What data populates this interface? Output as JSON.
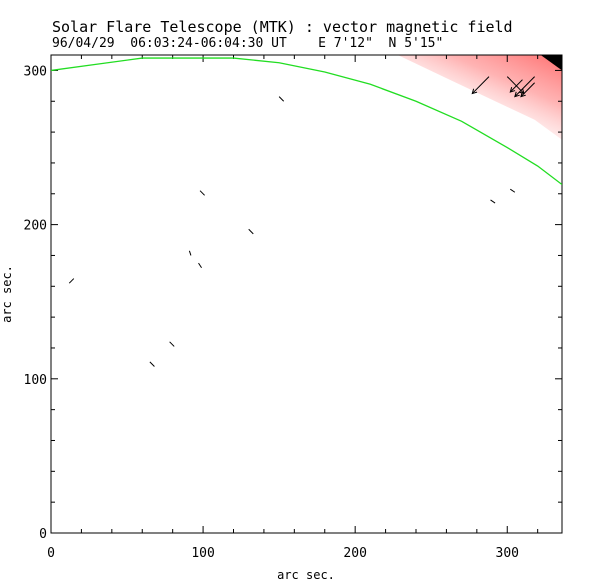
{
  "header": {
    "title": "Solar Flare Telescope (MTK) : vector magnetic field",
    "subtitle": "96/04/29  06:03:24-06:04:30 UT    E 7'12\"  N 5'15\""
  },
  "colors": {
    "limb": "#22dd22",
    "field_intensity": "#ff8888",
    "vectors": "#000000"
  },
  "chart_data": {
    "type": "scatter",
    "xlabel": "arc sec.",
    "ylabel": "arc sec.",
    "xlim": [
      0,
      336
    ],
    "ylim": [
      0,
      310
    ],
    "x_ticks": [
      0,
      100,
      200,
      300
    ],
    "y_ticks": [
      0,
      100,
      200,
      300
    ],
    "grid": false,
    "limb_curve": {
      "x": [
        0,
        30,
        60,
        90,
        120,
        150,
        180,
        210,
        240,
        270,
        300,
        320,
        336
      ],
      "y": [
        300,
        304,
        308,
        308,
        308,
        305,
        299,
        291,
        280,
        267,
        250,
        238,
        226
      ]
    },
    "vectors": [
      {
        "x": 12,
        "y": 162,
        "dx": 3,
        "dy": 3
      },
      {
        "x": 65,
        "y": 111,
        "dx": 3,
        "dy": -3
      },
      {
        "x": 78,
        "y": 124,
        "dx": 3,
        "dy": -3
      },
      {
        "x": 91,
        "y": 183,
        "dx": 1,
        "dy": -3
      },
      {
        "x": 97,
        "y": 175,
        "dx": 2,
        "dy": -3
      },
      {
        "x": 98,
        "y": 222,
        "dx": 3,
        "dy": -3
      },
      {
        "x": 130,
        "y": 197,
        "dx": 3,
        "dy": -3
      },
      {
        "x": 150,
        "y": 283,
        "dx": 3,
        "dy": -3
      },
      {
        "x": 289,
        "y": 216,
        "dx": 3,
        "dy": -2
      },
      {
        "x": 302,
        "y": 223,
        "dx": 3,
        "dy": -2
      },
      {
        "x": 288,
        "y": 296,
        "dx": -11,
        "dy": -11
      },
      {
        "x": 300,
        "y": 296,
        "dx": 11,
        "dy": -11
      },
      {
        "x": 310,
        "y": 294,
        "dx": -8,
        "dy": -8
      },
      {
        "x": 318,
        "y": 296,
        "dx": -13,
        "dy": -13
      },
      {
        "x": 318,
        "y": 292,
        "dx": -9,
        "dy": -9
      }
    ]
  }
}
